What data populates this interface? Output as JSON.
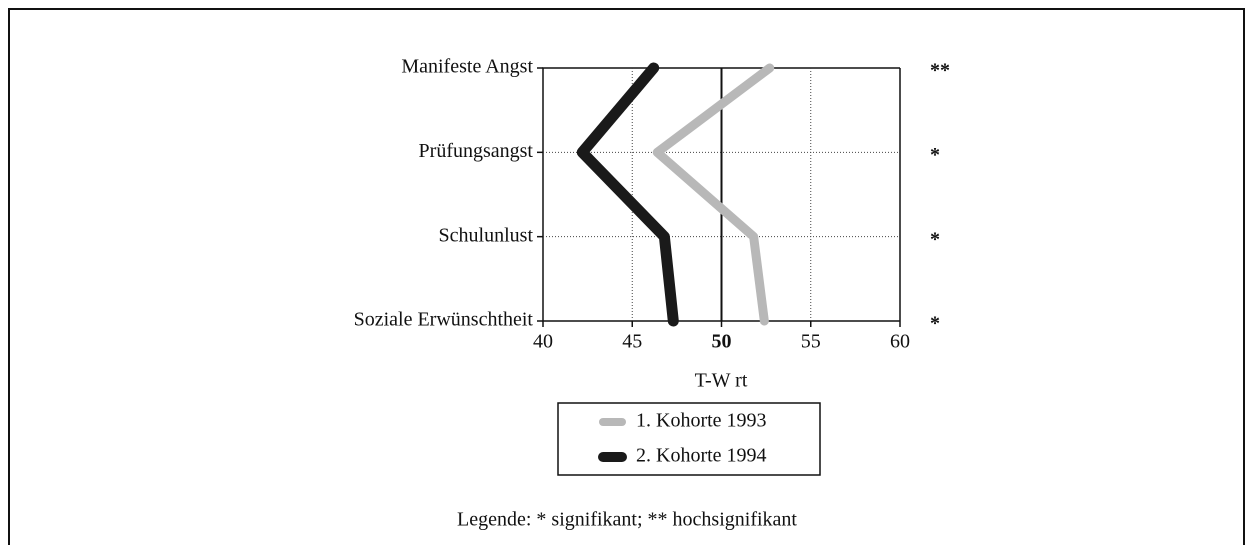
{
  "chart_data": {
    "type": "line",
    "orientation": "horizontal",
    "categories": [
      "Manifeste Angst",
      "Prüfungsangst",
      "Schulunlust",
      "Soziale Erwünschtheit"
    ],
    "series": [
      {
        "name": "1. Kohorte 1993",
        "color": "#b8b8b8",
        "values": [
          52.7,
          46.4,
          51.8,
          52.4
        ]
      },
      {
        "name": "2. Kohorte 1994",
        "color": "#1a1a1a",
        "values": [
          46.2,
          42.2,
          46.8,
          47.3
        ]
      }
    ],
    "xlim": [
      40,
      60
    ],
    "xticks": [
      40,
      45,
      50,
      55,
      60
    ],
    "reference_line": 50,
    "xlabel": "T-W rt",
    "grid": true,
    "significance": [
      "**",
      "*",
      "*",
      "*"
    ],
    "footnote": "Legende: * signifikant; ** hochsignifikant"
  }
}
